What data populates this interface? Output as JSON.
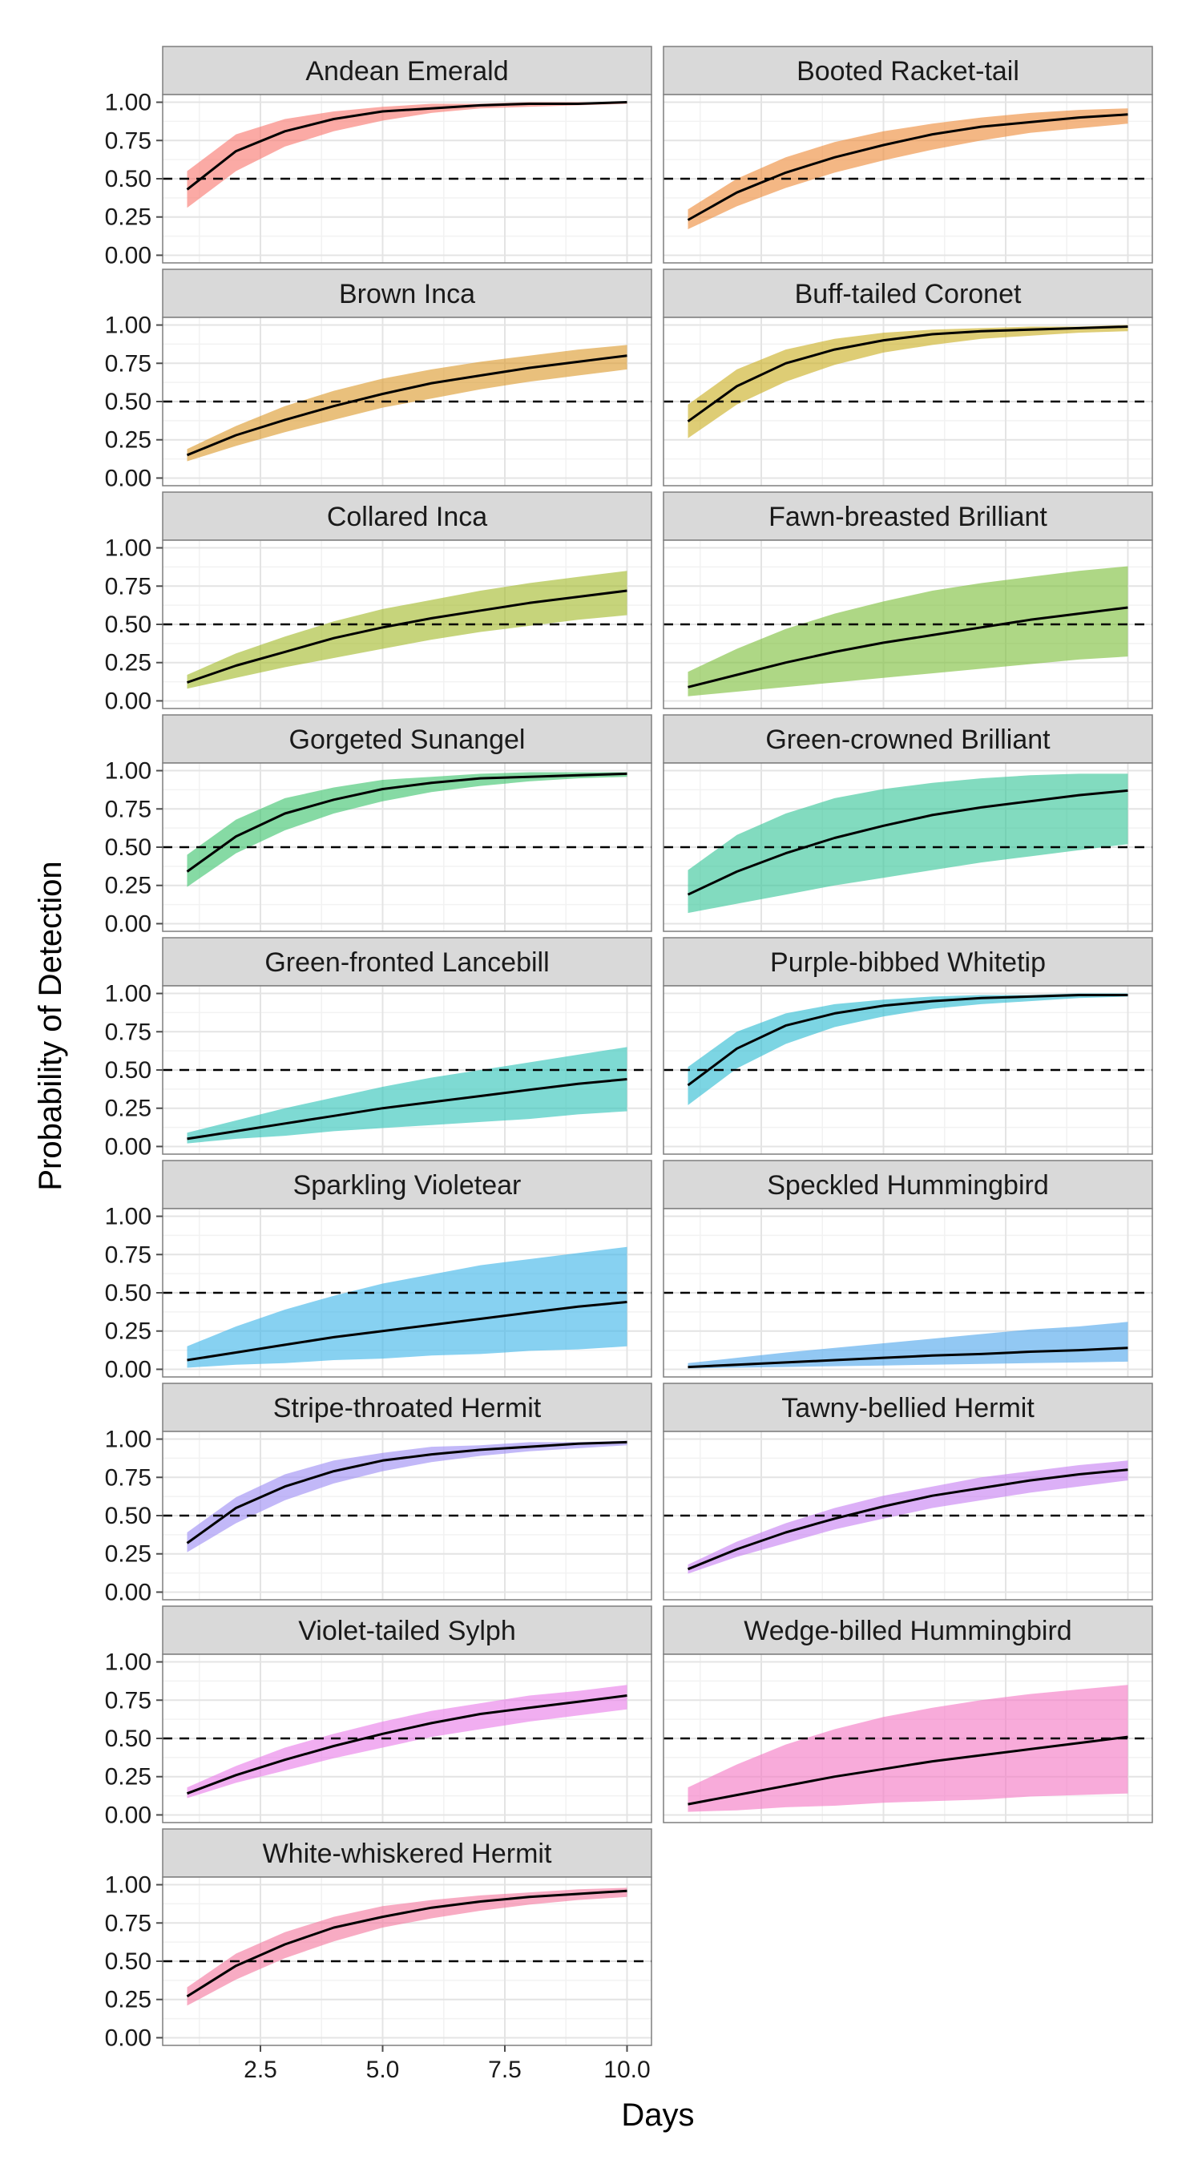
{
  "chart_data": {
    "type": "area",
    "xlabel": "Days",
    "ylabel": "Probability of Detection",
    "xlim": [
      0.5,
      10.5
    ],
    "ylim": [
      -0.05,
      1.05
    ],
    "x_ticks": [
      "2.5",
      "5.0",
      "7.5",
      "10.0"
    ],
    "x_tick_values": [
      2.5,
      5.0,
      7.5,
      10.0
    ],
    "y_ticks": [
      "0.00",
      "0.25",
      "0.50",
      "0.75",
      "1.00"
    ],
    "y_tick_values": [
      0,
      0.25,
      0.5,
      0.75,
      1.0
    ],
    "reference_line_y": 0.5,
    "grid": true,
    "facets": "2 columns, 9 rows",
    "x": [
      1,
      2,
      3,
      4,
      5,
      6,
      7,
      8,
      9,
      10
    ],
    "series": [
      {
        "name": "Andean Emerald",
        "color": "#F8766D",
        "values": [
          0.43,
          0.68,
          0.81,
          0.89,
          0.94,
          0.96,
          0.98,
          0.99,
          0.99,
          1.0
        ],
        "lower": [
          0.31,
          0.55,
          0.71,
          0.81,
          0.88,
          0.93,
          0.96,
          0.97,
          0.98,
          0.99
        ],
        "upper": [
          0.55,
          0.79,
          0.89,
          0.94,
          0.97,
          0.99,
          0.99,
          1.0,
          1.0,
          1.0
        ]
      },
      {
        "name": "Booted Racket-tail",
        "color": "#EE8A38",
        "values": [
          0.23,
          0.41,
          0.54,
          0.64,
          0.72,
          0.79,
          0.84,
          0.87,
          0.9,
          0.92
        ],
        "lower": [
          0.17,
          0.32,
          0.44,
          0.54,
          0.62,
          0.69,
          0.75,
          0.8,
          0.83,
          0.86
        ],
        "upper": [
          0.3,
          0.5,
          0.64,
          0.74,
          0.81,
          0.86,
          0.9,
          0.93,
          0.95,
          0.96
        ]
      },
      {
        "name": "Brown Inca",
        "color": "#DB9A2C",
        "values": [
          0.15,
          0.28,
          0.38,
          0.47,
          0.55,
          0.62,
          0.67,
          0.72,
          0.76,
          0.8
        ],
        "lower": [
          0.11,
          0.21,
          0.3,
          0.38,
          0.46,
          0.52,
          0.58,
          0.63,
          0.67,
          0.71
        ],
        "upper": [
          0.19,
          0.34,
          0.47,
          0.57,
          0.65,
          0.71,
          0.76,
          0.8,
          0.84,
          0.87
        ]
      },
      {
        "name": "Buff-tailed Coronet",
        "color": "#C9AE21",
        "values": [
          0.37,
          0.6,
          0.75,
          0.84,
          0.9,
          0.94,
          0.96,
          0.97,
          0.98,
          0.99
        ],
        "lower": [
          0.26,
          0.48,
          0.63,
          0.74,
          0.82,
          0.87,
          0.91,
          0.93,
          0.95,
          0.96
        ],
        "upper": [
          0.48,
          0.71,
          0.84,
          0.91,
          0.95,
          0.97,
          0.98,
          0.99,
          0.99,
          1.0
        ]
      },
      {
        "name": "Collared Inca",
        "color": "#A3BA2A",
        "values": [
          0.12,
          0.23,
          0.32,
          0.41,
          0.48,
          0.54,
          0.59,
          0.64,
          0.68,
          0.72
        ],
        "lower": [
          0.08,
          0.15,
          0.22,
          0.28,
          0.34,
          0.4,
          0.45,
          0.49,
          0.53,
          0.56
        ],
        "upper": [
          0.17,
          0.31,
          0.42,
          0.52,
          0.6,
          0.66,
          0.72,
          0.77,
          0.81,
          0.85
        ]
      },
      {
        "name": "Fawn-breasted Brilliant",
        "color": "#7CBE3A",
        "values": [
          0.09,
          0.17,
          0.25,
          0.32,
          0.38,
          0.43,
          0.48,
          0.53,
          0.57,
          0.61
        ],
        "lower": [
          0.03,
          0.06,
          0.09,
          0.12,
          0.15,
          0.18,
          0.21,
          0.24,
          0.27,
          0.29
        ],
        "upper": [
          0.19,
          0.34,
          0.47,
          0.57,
          0.65,
          0.72,
          0.77,
          0.81,
          0.85,
          0.88
        ]
      },
      {
        "name": "Gorgeted Sunangel",
        "color": "#3BC46C",
        "values": [
          0.34,
          0.57,
          0.72,
          0.81,
          0.88,
          0.92,
          0.95,
          0.96,
          0.97,
          0.98
        ],
        "lower": [
          0.24,
          0.46,
          0.61,
          0.72,
          0.8,
          0.86,
          0.9,
          0.93,
          0.95,
          0.96
        ],
        "upper": [
          0.45,
          0.68,
          0.82,
          0.89,
          0.94,
          0.96,
          0.98,
          0.99,
          0.99,
          0.99
        ]
      },
      {
        "name": "Green-crowned Brilliant",
        "color": "#35C597",
        "values": [
          0.19,
          0.34,
          0.46,
          0.56,
          0.64,
          0.71,
          0.76,
          0.8,
          0.84,
          0.87
        ],
        "lower": [
          0.07,
          0.13,
          0.19,
          0.25,
          0.3,
          0.35,
          0.4,
          0.44,
          0.48,
          0.52
        ],
        "upper": [
          0.35,
          0.58,
          0.72,
          0.82,
          0.88,
          0.92,
          0.95,
          0.97,
          0.98,
          0.98
        ]
      },
      {
        "name": "Green-fronted Lancebill",
        "color": "#2EC4B8",
        "values": [
          0.05,
          0.1,
          0.15,
          0.2,
          0.25,
          0.29,
          0.33,
          0.37,
          0.41,
          0.44
        ],
        "lower": [
          0.02,
          0.05,
          0.07,
          0.1,
          0.12,
          0.14,
          0.16,
          0.18,
          0.21,
          0.23
        ],
        "upper": [
          0.09,
          0.17,
          0.25,
          0.32,
          0.39,
          0.45,
          0.5,
          0.55,
          0.6,
          0.65
        ]
      },
      {
        "name": "Purple-bibbed Whitetip",
        "color": "#2BBCD2",
        "values": [
          0.4,
          0.64,
          0.79,
          0.87,
          0.92,
          0.95,
          0.97,
          0.98,
          0.99,
          0.99
        ],
        "lower": [
          0.27,
          0.51,
          0.67,
          0.78,
          0.85,
          0.9,
          0.93,
          0.95,
          0.97,
          0.98
        ],
        "upper": [
          0.52,
          0.75,
          0.87,
          0.93,
          0.96,
          0.98,
          0.99,
          0.99,
          1.0,
          1.0
        ]
      },
      {
        "name": "Sparkling Violetear",
        "color": "#3EB4E8",
        "values": [
          0.06,
          0.11,
          0.16,
          0.21,
          0.25,
          0.29,
          0.33,
          0.37,
          0.41,
          0.44
        ],
        "lower": [
          0.01,
          0.03,
          0.04,
          0.06,
          0.07,
          0.09,
          0.1,
          0.12,
          0.13,
          0.15
        ],
        "upper": [
          0.15,
          0.28,
          0.39,
          0.48,
          0.56,
          0.62,
          0.68,
          0.72,
          0.76,
          0.8
        ]
      },
      {
        "name": "Speckled Hummingbird",
        "color": "#4FA6EC",
        "values": [
          0.015,
          0.03,
          0.045,
          0.06,
          0.075,
          0.09,
          0.1,
          0.115,
          0.125,
          0.14
        ],
        "lower": [
          0.005,
          0.01,
          0.015,
          0.02,
          0.025,
          0.03,
          0.035,
          0.04,
          0.045,
          0.05
        ],
        "upper": [
          0.04,
          0.075,
          0.11,
          0.14,
          0.17,
          0.2,
          0.23,
          0.26,
          0.28,
          0.31
        ]
      },
      {
        "name": "Stripe-throated Hermit",
        "color": "#9C8CF4",
        "values": [
          0.32,
          0.55,
          0.69,
          0.79,
          0.86,
          0.9,
          0.93,
          0.95,
          0.97,
          0.98
        ],
        "lower": [
          0.26,
          0.45,
          0.6,
          0.71,
          0.79,
          0.85,
          0.89,
          0.92,
          0.94,
          0.96
        ],
        "upper": [
          0.39,
          0.62,
          0.77,
          0.86,
          0.91,
          0.95,
          0.96,
          0.98,
          0.98,
          0.99
        ]
      },
      {
        "name": "Tawny-bellied Hermit",
        "color": "#C780F2",
        "values": [
          0.15,
          0.28,
          0.39,
          0.48,
          0.56,
          0.63,
          0.68,
          0.73,
          0.77,
          0.8
        ],
        "lower": [
          0.12,
          0.23,
          0.32,
          0.41,
          0.48,
          0.55,
          0.6,
          0.65,
          0.69,
          0.73
        ],
        "upper": [
          0.18,
          0.33,
          0.45,
          0.55,
          0.63,
          0.69,
          0.75,
          0.79,
          0.83,
          0.86
        ]
      },
      {
        "name": "Violet-tailed Sylph",
        "color": "#E97CE8",
        "values": [
          0.14,
          0.26,
          0.36,
          0.45,
          0.53,
          0.6,
          0.66,
          0.7,
          0.74,
          0.78
        ],
        "lower": [
          0.11,
          0.21,
          0.29,
          0.37,
          0.44,
          0.51,
          0.56,
          0.61,
          0.65,
          0.69
        ],
        "upper": [
          0.18,
          0.32,
          0.44,
          0.53,
          0.61,
          0.68,
          0.73,
          0.78,
          0.81,
          0.85
        ]
      },
      {
        "name": "Wedge-billed Hummingbird",
        "color": "#F477C4",
        "values": [
          0.07,
          0.13,
          0.19,
          0.25,
          0.3,
          0.35,
          0.39,
          0.43,
          0.47,
          0.51
        ],
        "lower": [
          0.02,
          0.03,
          0.05,
          0.06,
          0.08,
          0.09,
          0.1,
          0.12,
          0.13,
          0.14
        ],
        "upper": [
          0.18,
          0.33,
          0.46,
          0.56,
          0.64,
          0.7,
          0.75,
          0.79,
          0.82,
          0.85
        ]
      },
      {
        "name": "White-whiskered Hermit",
        "color": "#F4789E",
        "values": [
          0.27,
          0.47,
          0.61,
          0.72,
          0.79,
          0.85,
          0.89,
          0.92,
          0.94,
          0.96
        ],
        "lower": [
          0.21,
          0.38,
          0.52,
          0.63,
          0.72,
          0.78,
          0.83,
          0.87,
          0.9,
          0.92
        ],
        "upper": [
          0.33,
          0.55,
          0.69,
          0.79,
          0.86,
          0.9,
          0.93,
          0.95,
          0.97,
          0.98
        ]
      }
    ]
  }
}
